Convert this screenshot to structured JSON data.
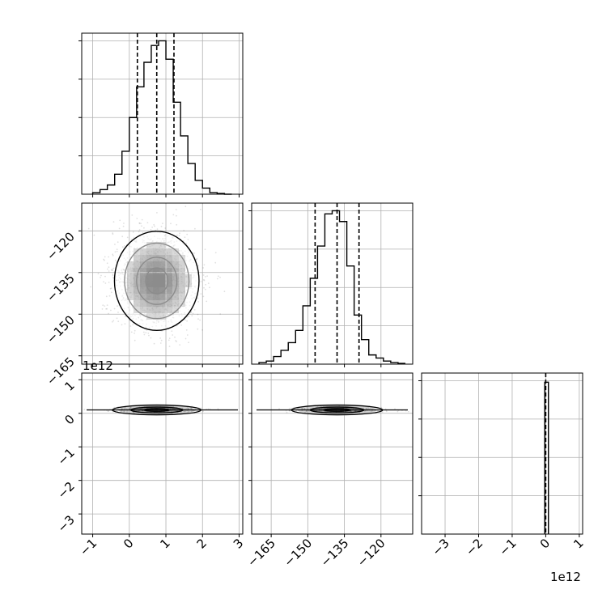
{
  "chart_data": {
    "type": "corner",
    "parameters": 3,
    "panels": [
      {
        "id": "hist-0",
        "type": "histogram",
        "row": 0,
        "col": 0,
        "xlim": [
          -1.3,
          3.1
        ],
        "bin_edges": [
          -1.0,
          -0.8,
          -0.6,
          -0.4,
          -0.2,
          0.0,
          0.2,
          0.4,
          0.6,
          0.8,
          1.0,
          1.2,
          1.4,
          1.6,
          1.8,
          2.0,
          2.2,
          2.4,
          2.6,
          2.8
        ],
        "counts": [
          0.01,
          0.03,
          0.06,
          0.13,
          0.28,
          0.5,
          0.7,
          0.86,
          0.97,
          1.0,
          0.88,
          0.6,
          0.38,
          0.2,
          0.09,
          0.04,
          0.01,
          0.005,
          0.0
        ],
        "quantiles": [
          0.22,
          0.75,
          1.22
        ],
        "ylim": [
          0,
          1.05
        ]
      },
      {
        "id": "hist-1",
        "type": "histogram",
        "row": 1,
        "col": 1,
        "xlim": [
          -173,
          -107
        ],
        "bin_edges": [
          -170,
          -167,
          -164,
          -161,
          -158,
          -155,
          -152,
          -149,
          -146,
          -143,
          -140,
          -137,
          -134,
          -131,
          -128,
          -125,
          -122,
          -119,
          -116,
          -113,
          -110
        ],
        "counts": [
          0.01,
          0.02,
          0.05,
          0.09,
          0.14,
          0.22,
          0.38,
          0.56,
          0.77,
          0.98,
          1.0,
          0.93,
          0.64,
          0.32,
          0.16,
          0.06,
          0.04,
          0.02,
          0.01,
          0.005
        ],
        "quantiles": [
          -147,
          -138,
          -129
        ],
        "ylim": [
          0,
          1.05
        ]
      },
      {
        "id": "hist-2",
        "type": "histogram",
        "row": 2,
        "col": 2,
        "xlim": [
          -3.7,
          1.1
        ],
        "bins": [
          {
            "x0": -0.03,
            "x1": 0.08,
            "count": 1.0
          }
        ],
        "quantiles": [
          0.0
        ],
        "ylim": [
          0,
          1.06
        ]
      },
      {
        "id": "scatter-1-0",
        "type": "2d-density",
        "row": 1,
        "col": 0,
        "xlim": [
          -1.3,
          3.1
        ],
        "ylim": [
          -168,
          -110
        ],
        "center": [
          0.75,
          -138
        ],
        "spread": [
          0.55,
          8.5
        ],
        "contour_levels_sigma": [
          0.5,
          1.0,
          1.5,
          2.0
        ]
      },
      {
        "id": "scatter-2-0",
        "type": "2d-density",
        "row": 2,
        "col": 0,
        "xlim": [
          -1.3,
          3.1
        ],
        "ylim": [
          -3.6,
          1.2
        ],
        "center": [
          0.75,
          0.1
        ],
        "spread": [
          0.55,
          0.03
        ]
      },
      {
        "id": "scatter-2-1",
        "type": "2d-density",
        "row": 2,
        "col": 1,
        "xlim": [
          -173,
          -107
        ],
        "ylim": [
          -3.6,
          1.2
        ],
        "center": [
          -138,
          0.1
        ],
        "spread": [
          8.5,
          0.03
        ]
      }
    ],
    "axes": {
      "param0": {
        "ticks": [
          -1,
          0,
          1,
          2,
          3
        ],
        "labels": [
          "−1",
          "0",
          "1",
          "2",
          "3"
        ]
      },
      "param1": {
        "ticks": [
          -165,
          -150,
          -135,
          -120
        ],
        "labels": [
          "−165",
          "−150",
          "−135",
          "−120"
        ]
      },
      "param2": {
        "ticks": [
          -3,
          -2,
          -1,
          0,
          1
        ],
        "labels": [
          "−3",
          "−2",
          "−1",
          "0",
          "1"
        ],
        "offset_text": "1e12"
      }
    },
    "grid": true,
    "colors": {
      "line": "#000000",
      "point": "#000000",
      "grid": "#b0b0b0"
    }
  }
}
